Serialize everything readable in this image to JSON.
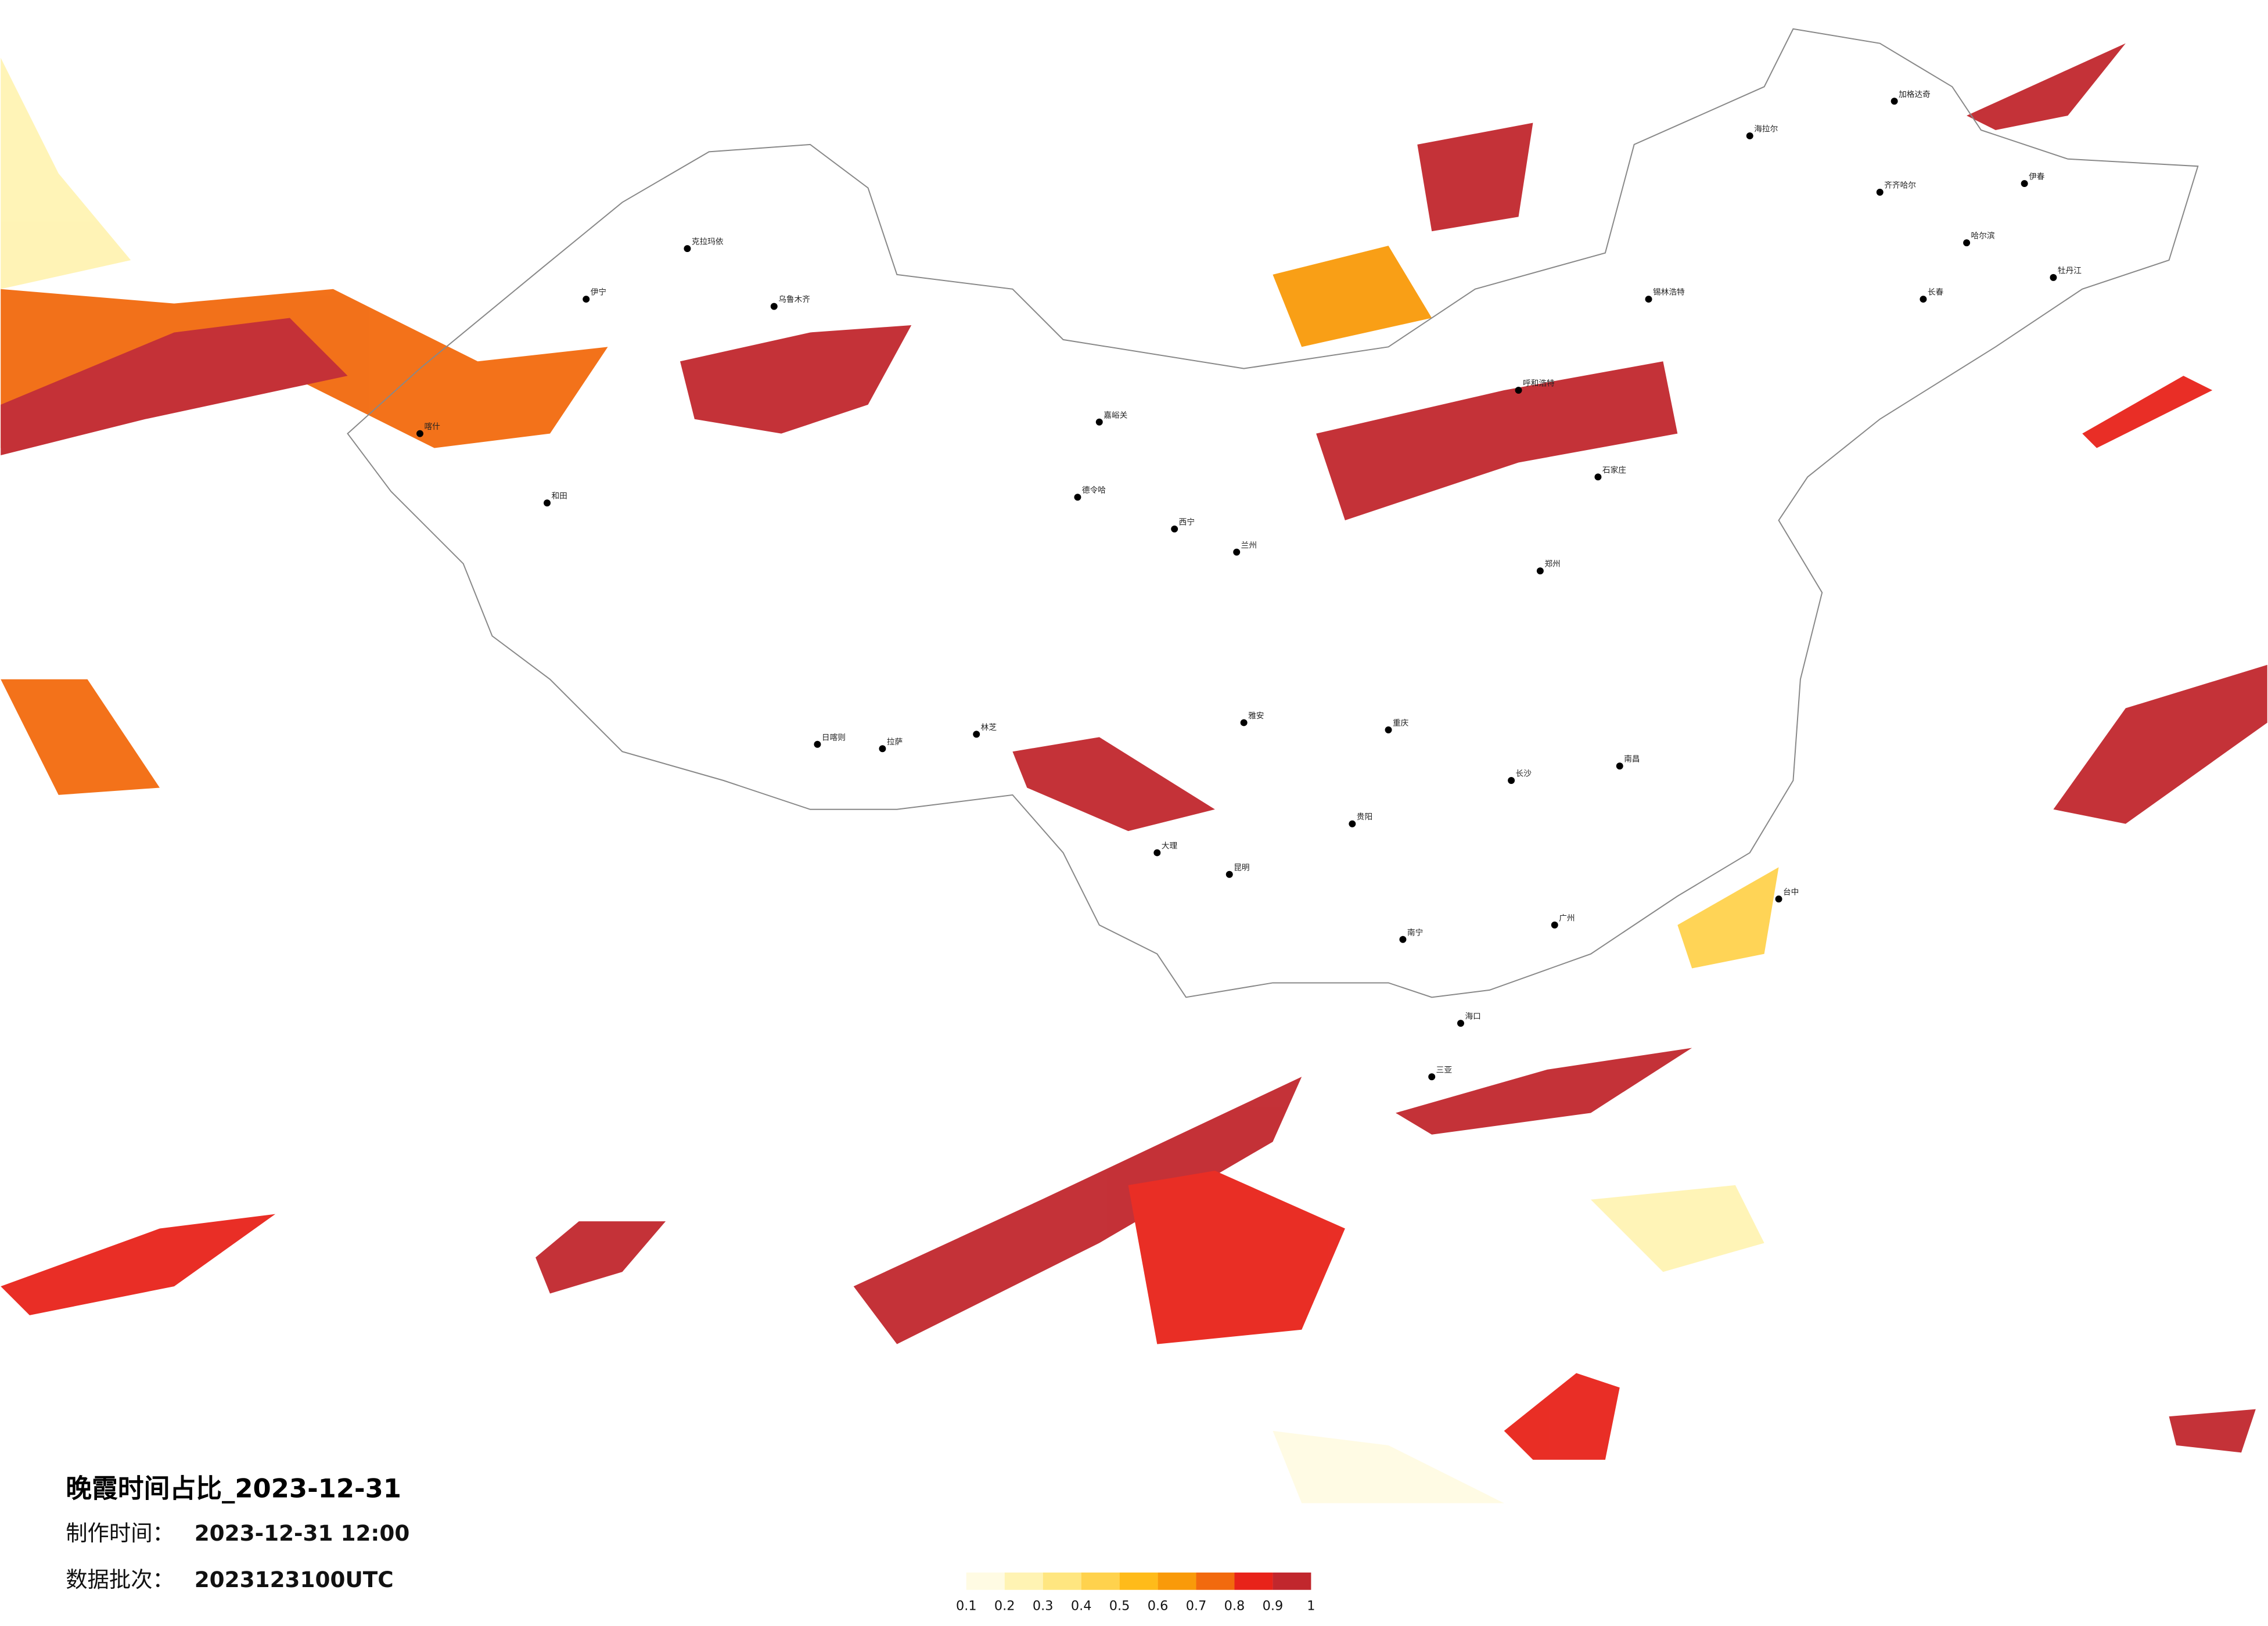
{
  "title": "晚霞时间占比_2023-12-31",
  "info": [
    {
      "label": "制作时间：",
      "value": "2023-12-31 12:00"
    },
    {
      "label": "数据批次：",
      "value": "2023123100UTC"
    }
  ],
  "legend": {
    "colors": [
      "#fffbe3",
      "#fff3b3",
      "#ffe680",
      "#ffd24d",
      "#ffbb1a",
      "#f99a0a",
      "#f26a0e",
      "#e8231a",
      "#c1272d"
    ],
    "ticks": [
      0.1,
      0.2,
      0.3,
      0.4,
      0.5,
      0.6,
      0.7,
      0.8,
      0.9,
      1
    ]
  },
  "cities": [
    "克拉玛依",
    "伊宁",
    "乌鲁木齐",
    "喀什",
    "和田",
    "嘉峪关",
    "德令哈",
    "西宁",
    "兰州",
    "日喀则",
    "拉萨",
    "林芝",
    "雅安",
    "大理",
    "昆明",
    "贵阳",
    "南宁",
    "海口",
    "三亚",
    "海拉尔",
    "加格达奇",
    "齐齐哈尔",
    "哈尔滨",
    "伊春",
    "牡丹江",
    "长春",
    "锡林浩特",
    "呼和浩特",
    "石家庄",
    "郑州",
    "长沙",
    "南昌",
    "台中",
    "广州",
    "重庆"
  ]
}
